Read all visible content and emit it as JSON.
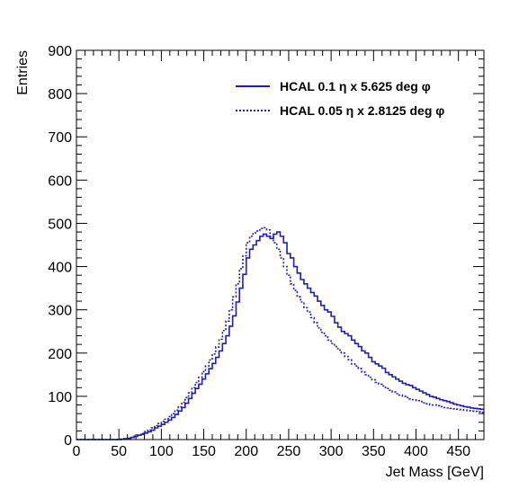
{
  "chart_data": {
    "type": "line",
    "title": "",
    "xlabel": "Jet Mass [GeV]",
    "ylabel": "Entries",
    "xlim": [
      0,
      480
    ],
    "ylim": [
      0,
      900
    ],
    "x_ticks": [
      0,
      50,
      100,
      150,
      200,
      250,
      300,
      350,
      400,
      450
    ],
    "y_ticks": [
      0,
      100,
      200,
      300,
      400,
      500,
      600,
      700,
      800,
      900
    ],
    "grid": false,
    "legend_position": "top-right",
    "bin_width": 4,
    "series": [
      {
        "name": "HCAL 0.1 η x 5.625 deg φ",
        "style": "solid",
        "color": "#1f1fa8",
        "values": [
          0,
          0,
          0,
          0,
          0,
          0,
          0,
          0,
          0,
          0,
          0,
          0,
          0,
          1,
          2,
          3,
          5,
          7,
          10,
          12,
          15,
          18,
          22,
          27,
          31,
          35,
          40,
          45,
          51,
          58,
          66,
          74,
          84,
          95,
          107,
          118,
          128,
          140,
          152,
          164,
          176,
          190,
          205,
          222,
          240,
          262,
          286,
          318,
          350,
          382,
          420,
          440,
          450,
          460,
          470,
          475,
          470,
          465,
          475,
          480,
          470,
          455,
          430,
          420,
          400,
          385,
          370,
          360,
          350,
          340,
          332,
          320,
          310,
          300,
          295,
          285,
          270,
          260,
          250,
          245,
          240,
          230,
          222,
          215,
          205,
          200,
          190,
          180,
          175,
          170,
          165,
          155,
          150,
          145,
          140,
          135,
          130,
          127,
          125,
          120,
          116,
          112,
          108,
          104,
          100,
          98,
          95,
          92,
          90,
          88,
          85,
          82,
          80,
          78,
          76,
          75,
          73,
          72,
          71,
          70
        ]
      },
      {
        "name": "HCAL 0.05 η x 2.8125 deg φ",
        "style": "dotted",
        "color": "#1f1fa8",
        "values": [
          0,
          0,
          0,
          0,
          0,
          0,
          0,
          0,
          0,
          0,
          0,
          0,
          0,
          1,
          2,
          3,
          5,
          8,
          11,
          14,
          18,
          22,
          27,
          32,
          37,
          42,
          47,
          53,
          60,
          68,
          76,
          86,
          97,
          108,
          120,
          132,
          144,
          157,
          170,
          184,
          198,
          214,
          232,
          252,
          274,
          300,
          330,
          360,
          395,
          425,
          455,
          470,
          478,
          482,
          488,
          490,
          485,
          470,
          455,
          440,
          420,
          400,
          380,
          360,
          345,
          330,
          318,
          305,
          295,
          282,
          270,
          258,
          248,
          240,
          230,
          222,
          215,
          207,
          200,
          192,
          185,
          175,
          170,
          164,
          156,
          150,
          144,
          138,
          132,
          128,
          124,
          118,
          114,
          110,
          106,
          103,
          100,
          97,
          94,
          92,
          90,
          88,
          85,
          83,
          80,
          80,
          78,
          76,
          74,
          73,
          72,
          71,
          70,
          69,
          68,
          67,
          66,
          65,
          64,
          63
        ]
      }
    ]
  }
}
